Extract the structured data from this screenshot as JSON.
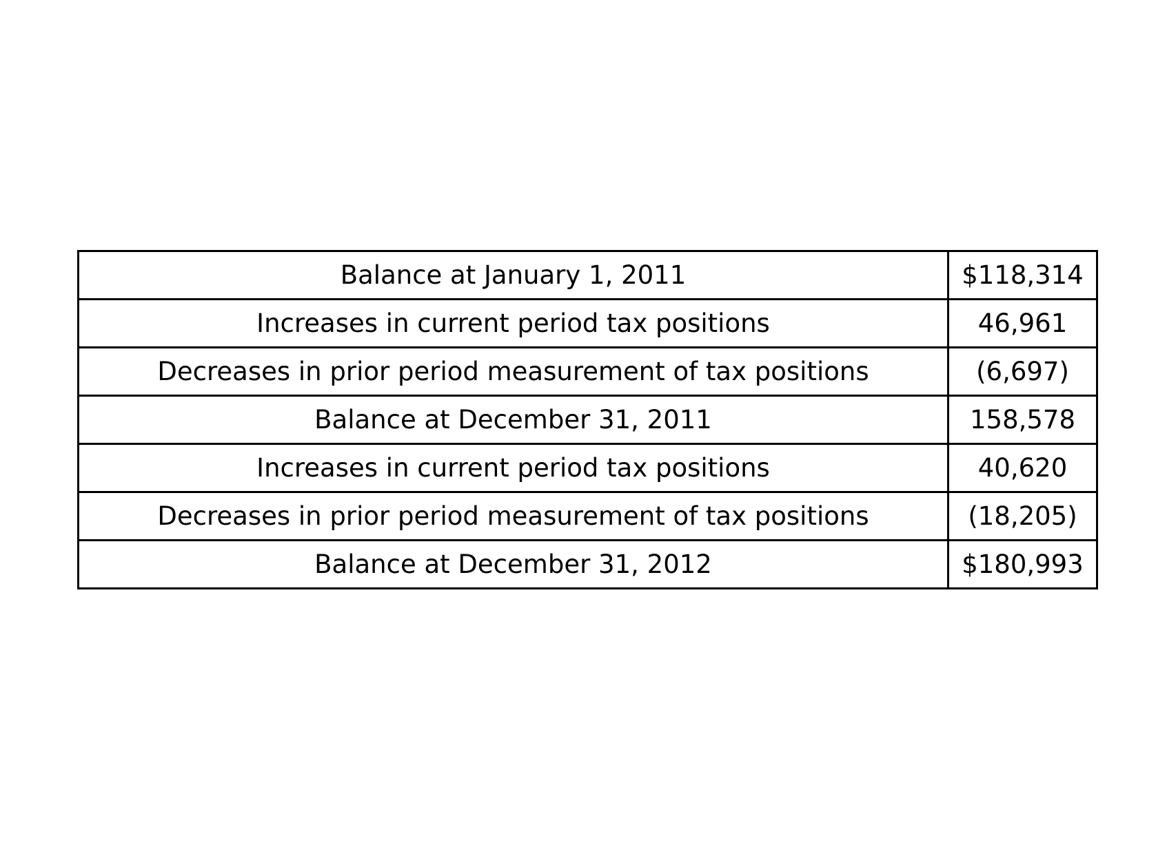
{
  "table": {
    "rows": [
      {
        "label": "Balance at January 1, 2011",
        "value": "$118,314"
      },
      {
        "label": "Increases in current period tax positions",
        "value": "46,961"
      },
      {
        "label": "Decreases in prior period measurement of tax positions",
        "value": "(6,697)"
      },
      {
        "label": "Balance at December 31, 2011",
        "value": "158,578"
      },
      {
        "label": "Increases in current period tax positions",
        "value": "40,620"
      },
      {
        "label": "Decreases in prior period measurement of tax positions",
        "value": "(18,205)"
      },
      {
        "label": "Balance at December 31, 2012",
        "value": "$180,993"
      }
    ]
  }
}
